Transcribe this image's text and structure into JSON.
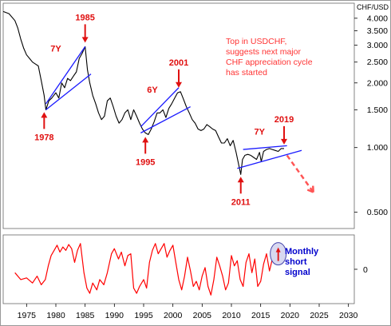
{
  "chart_data": [
    {
      "type": "line",
      "panel": "price",
      "y_axis_title": "CHF/USD",
      "scale": "log",
      "ylim": [
        0.42,
        4.7
      ],
      "xlim": [
        1971,
        2031
      ],
      "y_ticks": [
        {
          "value": 4.0,
          "label": "4.000"
        },
        {
          "value": 3.5,
          "label": "3.500"
        },
        {
          "value": 3.0,
          "label": "3.000"
        },
        {
          "value": 2.5,
          "label": "2.500"
        },
        {
          "value": 2.0,
          "label": "2.000"
        },
        {
          "value": 1.5,
          "label": "1.500"
        },
        {
          "value": 1.0,
          "label": "1.000"
        },
        {
          "value": 0.5,
          "label": "0.500"
        }
      ],
      "x_ticks": [
        "1975",
        "1980",
        "1985",
        "1990",
        "1995",
        "2000",
        "2005",
        "2010",
        "2015",
        "2020",
        "2025",
        "2030"
      ],
      "grid": false,
      "series": [
        {
          "color": "#000000",
          "x": [
            1971.0,
            1972.0,
            1973.0,
            1973.5,
            1974.0,
            1974.5,
            1975.0,
            1975.5,
            1976.0,
            1976.5,
            1977.0,
            1977.5,
            1978.0,
            1978.3,
            1978.8,
            1979.3,
            1980.0,
            1980.5,
            1981.0,
            1981.5,
            1982.0,
            1982.5,
            1983.0,
            1983.5,
            1984.0,
            1984.5,
            1985.0,
            1985.4,
            1985.8,
            1986.3,
            1986.8,
            1987.3,
            1987.8,
            1988.3,
            1988.8,
            1989.3,
            1989.8,
            1990.3,
            1990.8,
            1991.3,
            1991.8,
            1992.3,
            1992.8,
            1993.3,
            1993.8,
            1994.3,
            1994.8,
            1995.3,
            1995.8,
            1996.3,
            1996.8,
            1997.3,
            1997.8,
            1998.3,
            1998.8,
            1999.3,
            1999.8,
            2000.3,
            2000.8,
            2001.3,
            2001.8,
            2002.3,
            2002.8,
            2003.3,
            2003.8,
            2004.3,
            2004.8,
            2005.3,
            2005.8,
            2006.3,
            2006.8,
            2007.3,
            2007.8,
            2008.3,
            2008.8,
            2009.3,
            2009.8,
            2010.3,
            2010.8,
            2011.3,
            2011.6,
            2011.9,
            2012.3,
            2012.8,
            2013.3,
            2013.8,
            2014.3,
            2014.8,
            2015.1,
            2015.5,
            2016.0,
            2016.5,
            2017.0,
            2017.5,
            2018.0,
            2018.5,
            2019.0
          ],
          "y": [
            4.3,
            4.2,
            3.9,
            3.6,
            3.2,
            2.9,
            2.7,
            2.6,
            2.5,
            2.45,
            2.4,
            2.05,
            1.75,
            1.5,
            1.65,
            1.7,
            1.8,
            1.7,
            2.0,
            1.9,
            2.1,
            2.05,
            2.15,
            2.25,
            2.6,
            2.75,
            2.95,
            2.3,
            2.0,
            1.75,
            1.6,
            1.45,
            1.35,
            1.4,
            1.65,
            1.7,
            1.55,
            1.4,
            1.3,
            1.35,
            1.45,
            1.5,
            1.35,
            1.5,
            1.4,
            1.3,
            1.22,
            1.17,
            1.15,
            1.22,
            1.32,
            1.45,
            1.45,
            1.5,
            1.38,
            1.52,
            1.6,
            1.7,
            1.8,
            1.82,
            1.68,
            1.55,
            1.45,
            1.35,
            1.3,
            1.22,
            1.2,
            1.22,
            1.28,
            1.25,
            1.22,
            1.2,
            1.12,
            1.05,
            1.05,
            1.1,
            1.02,
            1.08,
            0.95,
            0.82,
            0.75,
            0.88,
            0.92,
            0.93,
            0.92,
            0.9,
            0.88,
            0.95,
            0.86,
            0.96,
            0.98,
            0.99,
            0.98,
            0.97,
            0.96,
            0.99,
            0.99
          ]
        }
      ],
      "annotations": [
        {
          "text": "1985",
          "kind": "arrow-down",
          "x": 1985.0,
          "y": 2.95
        },
        {
          "text": "2001",
          "kind": "arrow-down",
          "x": 2001.0,
          "y": 1.82
        },
        {
          "text": "2019",
          "kind": "arrow-down",
          "x": 2019.0,
          "y": 0.99
        },
        {
          "text": "1978",
          "kind": "arrow-up",
          "x": 1978.0,
          "y": 1.5
        },
        {
          "text": "1995",
          "kind": "arrow-up",
          "x": 1995.3,
          "y": 1.15
        },
        {
          "text": "2011",
          "kind": "arrow-up",
          "x": 2011.6,
          "y": 0.75
        },
        {
          "text": "7Y",
          "kind": "label",
          "x": 1980.0,
          "y": 2.8
        },
        {
          "text": "6Y",
          "kind": "label",
          "x": 1996.5,
          "y": 1.8
        },
        {
          "text": "7Y",
          "kind": "label",
          "x": 2014.8,
          "y": 1.15
        }
      ],
      "channels": [
        {
          "color": "#1a1aff",
          "x1": 1978.3,
          "y1": 1.6,
          "x2": 1985.0,
          "y2": 2.95
        },
        {
          "color": "#1a1aff",
          "x1": 1978.3,
          "y1": 1.5,
          "x2": 1986.0,
          "y2": 2.2
        },
        {
          "color": "#1a1aff",
          "x1": 1994.5,
          "y1": 1.25,
          "x2": 2001.0,
          "y2": 1.9
        },
        {
          "color": "#1a1aff",
          "x1": 1994.5,
          "y1": 1.17,
          "x2": 2003.0,
          "y2": 1.55
        },
        {
          "color": "#1a1aff",
          "x1": 2012.0,
          "y1": 0.98,
          "x2": 2019.5,
          "y2": 1.02
        },
        {
          "color": "#1a1aff",
          "x1": 2011.0,
          "y1": 0.8,
          "x2": 2022.0,
          "y2": 0.97
        }
      ],
      "projection": {
        "color": "#ff5555",
        "x1": 2019.5,
        "y1": 0.92,
        "x2": 2024.0,
        "y2": 0.62
      },
      "note": {
        "color": "#ff3333",
        "lines": [
          "Top in USDCHF,",
          "suggests next major",
          "CHF appreciation cycle",
          "has started"
        ]
      }
    },
    {
      "type": "line",
      "panel": "oscillator",
      "xlim": [
        1971,
        2031
      ],
      "ylim": [
        -1.0,
        1.0
      ],
      "y_ticks": [
        {
          "value": 0,
          "label": "0"
        }
      ],
      "series": [
        {
          "color": "#ff0000",
          "x": [
            1973.0,
            1974.0,
            1975.0,
            1976.0,
            1976.8,
            1977.5,
            1978.2,
            1978.7,
            1979.2,
            1979.7,
            1980.2,
            1980.7,
            1981.2,
            1981.7,
            1982.2,
            1982.7,
            1983.2,
            1983.7,
            1984.2,
            1984.8,
            1985.3,
            1985.8,
            1986.3,
            1987.0,
            1987.5,
            1988.2,
            1988.8,
            1989.5,
            1990.0,
            1990.7,
            1991.2,
            1991.8,
            1992.3,
            1992.8,
            1993.3,
            1993.8,
            1994.3,
            1995.0,
            1995.5,
            1996.0,
            1996.5,
            1997.0,
            1997.5,
            1998.0,
            1998.5,
            1999.0,
            1999.5,
            2000.0,
            2000.5,
            2001.0,
            2001.5,
            2002.0,
            2002.5,
            2003.0,
            2003.5,
            2004.0,
            2004.5,
            2005.0,
            2005.5,
            2006.0,
            2006.5,
            2007.0,
            2007.5,
            2008.0,
            2008.5,
            2009.0,
            2009.5,
            2010.0,
            2010.5,
            2011.0,
            2011.5,
            2012.0,
            2012.5,
            2013.0,
            2013.5,
            2014.0,
            2014.5,
            2015.0,
            2015.5,
            2016.0,
            2016.5,
            2017.0,
            2017.5,
            2018.0,
            2018.5
          ],
          "y": [
            -0.1,
            -0.3,
            -0.25,
            -0.4,
            -0.2,
            -0.45,
            -0.3,
            0.1,
            0.4,
            0.55,
            0.7,
            0.5,
            0.65,
            0.55,
            0.72,
            0.6,
            0.2,
            0.55,
            0.75,
            -0.1,
            -0.55,
            -0.7,
            -0.4,
            -0.6,
            -0.3,
            -0.45,
            -0.1,
            0.45,
            0.6,
            0.3,
            0.5,
            0.1,
            0.4,
            0.45,
            -0.55,
            -0.7,
            -0.5,
            -0.3,
            -0.55,
            0.2,
            0.55,
            0.75,
            0.45,
            0.6,
            0.75,
            0.35,
            0.55,
            0.7,
            0.2,
            -0.3,
            -0.6,
            -0.2,
            0.35,
            -0.05,
            -0.5,
            -0.35,
            -0.6,
            -0.2,
            0.05,
            -0.5,
            -0.75,
            -0.3,
            0.35,
            0.1,
            -0.2,
            -0.6,
            -0.4,
            0.4,
            0.1,
            0.25,
            -0.3,
            -0.5,
            0.2,
            0.45,
            -0.1,
            0.3,
            -0.5,
            -0.35,
            0.15,
            0.45,
            -0.05,
            0.3,
            0.5,
            0.15,
            0.6
          ]
        }
      ],
      "signal": {
        "text": [
          "Monthly",
          "short",
          "signal"
        ],
        "color": "#0000cc",
        "circle_fill": "#d8d8f0",
        "x": 2018.0,
        "y": 0.45
      }
    }
  ]
}
